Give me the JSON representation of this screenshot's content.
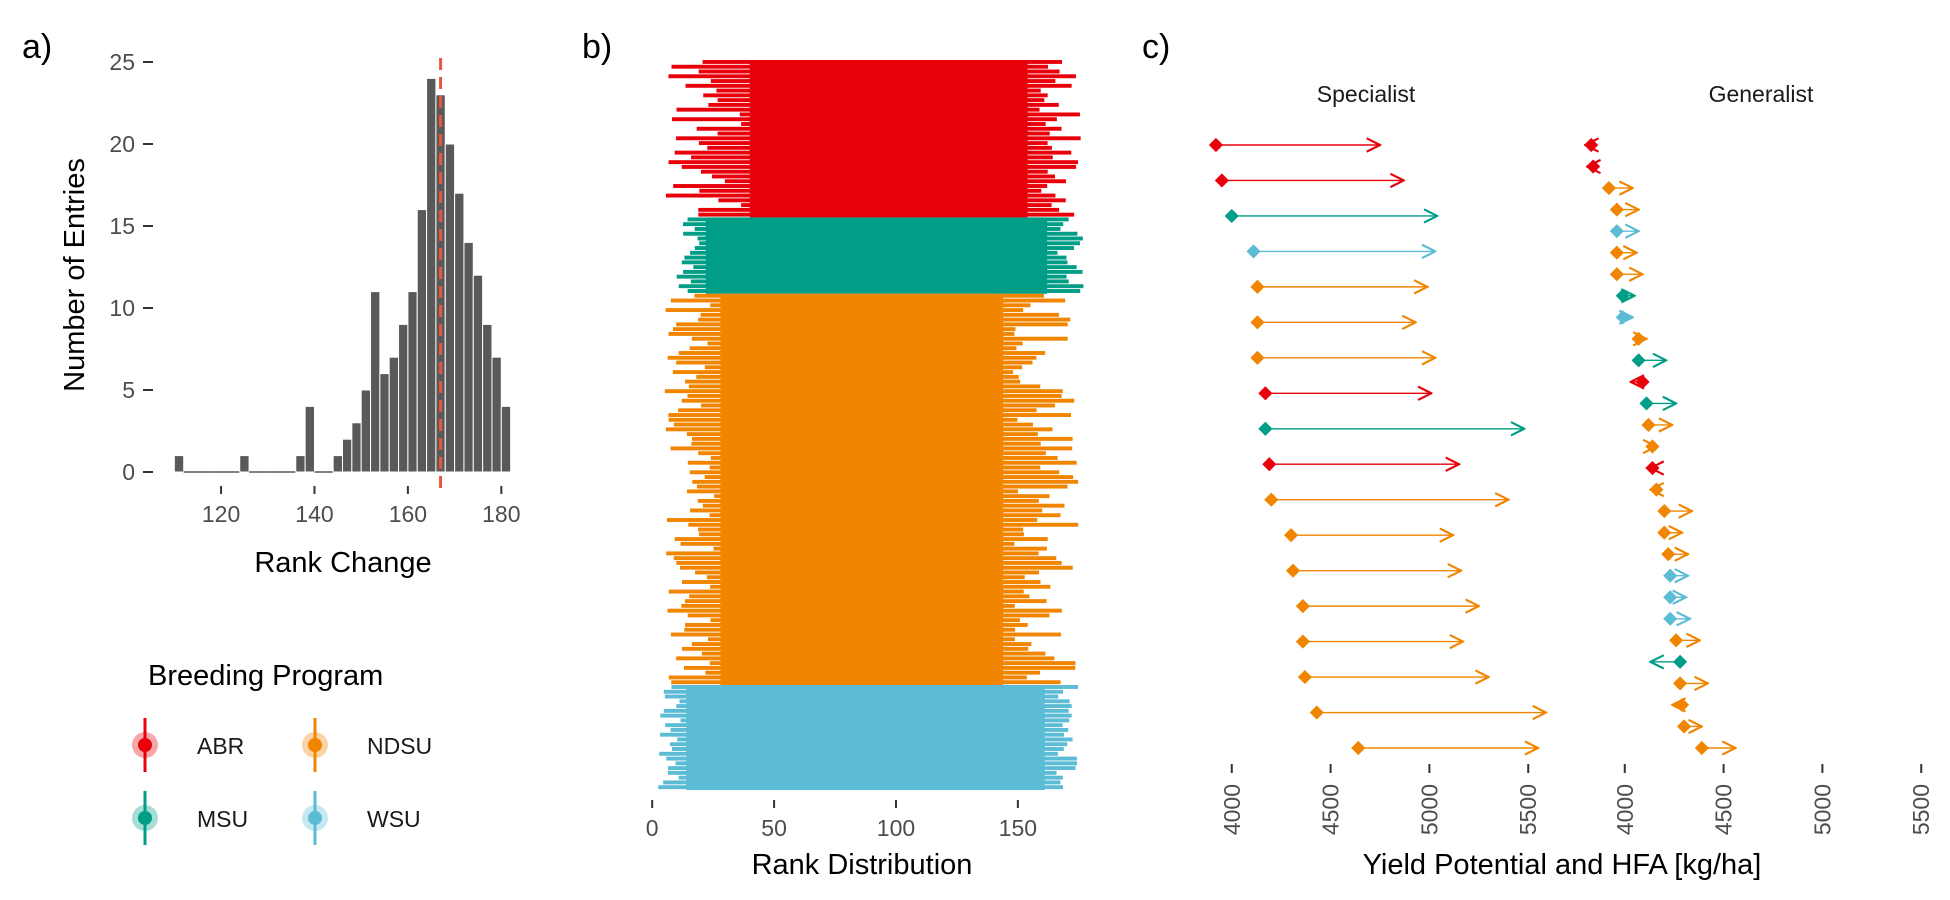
{
  "colors": {
    "ABR": "#e8000b",
    "MSU": "#009e87",
    "NDSU": "#f28500",
    "WSU": "#5cbcd6",
    "hist_bar": "#595959",
    "mean_line": "#e8563c"
  },
  "panels": {
    "a": "a)",
    "b": "b)",
    "c": "c)"
  },
  "legend": {
    "title": "Breeding Program",
    "items": [
      {
        "label": "ABR",
        "color": "#e8000b"
      },
      {
        "label": "NDSU",
        "color": "#f28500"
      },
      {
        "label": "MSU",
        "color": "#009e87"
      },
      {
        "label": "WSU",
        "color": "#5cbcd6"
      }
    ]
  },
  "chart_data": [
    {
      "type": "bar",
      "panel": "a",
      "xlabel": "Rank Change",
      "ylabel": "Number of Entries",
      "xlim": [
        108,
        184
      ],
      "ylim": [
        0,
        25
      ],
      "xticks": [
        120,
        140,
        160,
        180
      ],
      "yticks": [
        0,
        5,
        10,
        15,
        20,
        25
      ],
      "bin_width": 2,
      "bins": [
        {
          "x": 111,
          "count": 1
        },
        {
          "x": 113,
          "count": 0
        },
        {
          "x": 115,
          "count": 0
        },
        {
          "x": 117,
          "count": 0
        },
        {
          "x": 119,
          "count": 0
        },
        {
          "x": 121,
          "count": 0
        },
        {
          "x": 123,
          "count": 0
        },
        {
          "x": 125,
          "count": 1
        },
        {
          "x": 127,
          "count": 0
        },
        {
          "x": 129,
          "count": 0
        },
        {
          "x": 131,
          "count": 0
        },
        {
          "x": 133,
          "count": 0
        },
        {
          "x": 135,
          "count": 0
        },
        {
          "x": 137,
          "count": 1
        },
        {
          "x": 139,
          "count": 4
        },
        {
          "x": 141,
          "count": 0
        },
        {
          "x": 143,
          "count": 0
        },
        {
          "x": 145,
          "count": 1
        },
        {
          "x": 147,
          "count": 2
        },
        {
          "x": 149,
          "count": 3
        },
        {
          "x": 151,
          "count": 5
        },
        {
          "x": 153,
          "count": 11
        },
        {
          "x": 155,
          "count": 6
        },
        {
          "x": 157,
          "count": 7
        },
        {
          "x": 159,
          "count": 9
        },
        {
          "x": 161,
          "count": 11
        },
        {
          "x": 163,
          "count": 16
        },
        {
          "x": 165,
          "count": 24
        },
        {
          "x": 167,
          "count": 23
        },
        {
          "x": 169,
          "count": 20
        },
        {
          "x": 171,
          "count": 17
        },
        {
          "x": 173,
          "count": 14
        },
        {
          "x": 175,
          "count": 12
        },
        {
          "x": 177,
          "count": 9
        },
        {
          "x": 179,
          "count": 7
        },
        {
          "x": 181,
          "count": 4
        }
      ],
      "mean": 167
    },
    {
      "type": "bar",
      "panel": "b",
      "orientation": "horizontal",
      "xlabel": "Rank Distribution",
      "xlim": [
        -5,
        180
      ],
      "xticks": [
        0,
        50,
        100,
        150
      ],
      "groups": [
        {
          "program": "ABR",
          "entries": 33,
          "start_min": 4,
          "start_max": 38,
          "end_min": 158,
          "end_max": 176
        },
        {
          "program": "MSU",
          "entries": 16,
          "start_min": 10,
          "start_max": 20,
          "end_min": 166,
          "end_max": 177
        },
        {
          "program": "NDSU",
          "entries": 82,
          "start_min": 5,
          "start_max": 26,
          "end_min": 148,
          "end_max": 175
        },
        {
          "program": "WSU",
          "entries": 22,
          "start_min": 2,
          "start_max": 12,
          "end_min": 165,
          "end_max": 175
        }
      ]
    },
    {
      "type": "scatter",
      "panel": "c",
      "xlabel": "Yield Potential and HFA [kg/ha]",
      "xlim": [
        3900,
        5600
      ],
      "xticks": [
        4000,
        4500,
        5000,
        5500
      ],
      "facets": [
        {
          "name": "Specialist",
          "entries": [
            {
              "program": "ABR",
              "from": 3920,
              "to": 4750
            },
            {
              "program": "ABR",
              "from": 3950,
              "to": 4870
            },
            {
              "program": "MSU",
              "from": 4000,
              "to": 5040
            },
            {
              "program": "WSU",
              "from": 4110,
              "to": 5030
            },
            {
              "program": "NDSU",
              "from": 4130,
              "to": 4990
            },
            {
              "program": "NDSU",
              "from": 4130,
              "to": 4930
            },
            {
              "program": "NDSU",
              "from": 4130,
              "to": 5030
            },
            {
              "program": "ABR",
              "from": 4170,
              "to": 5010
            },
            {
              "program": "MSU",
              "from": 4170,
              "to": 5480
            },
            {
              "program": "ABR",
              "from": 4190,
              "to": 5150
            },
            {
              "program": "NDSU",
              "from": 4200,
              "to": 5400
            },
            {
              "program": "NDSU",
              "from": 4300,
              "to": 5120
            },
            {
              "program": "NDSU",
              "from": 4310,
              "to": 5160
            },
            {
              "program": "NDSU",
              "from": 4360,
              "to": 5250
            },
            {
              "program": "NDSU",
              "from": 4360,
              "to": 5170
            },
            {
              "program": "NDSU",
              "from": 4370,
              "to": 5300
            },
            {
              "program": "NDSU",
              "from": 4430,
              "to": 5590
            },
            {
              "program": "NDSU",
              "from": 4640,
              "to": 5550
            }
          ]
        },
        {
          "name": "Generalist",
          "entries": [
            {
              "program": "ABR",
              "from": 3830,
              "to": 3800
            },
            {
              "program": "ABR",
              "from": 3840,
              "to": 3810
            },
            {
              "program": "NDSU",
              "from": 3920,
              "to": 4040
            },
            {
              "program": "NDSU",
              "from": 3960,
              "to": 4070
            },
            {
              "program": "WSU",
              "from": 3960,
              "to": 4070
            },
            {
              "program": "NDSU",
              "from": 3960,
              "to": 4060
            },
            {
              "program": "NDSU",
              "from": 3960,
              "to": 4090
            },
            {
              "program": "MSU",
              "from": 3990,
              "to": 4050
            },
            {
              "program": "WSU",
              "from": 3990,
              "to": 4040
            },
            {
              "program": "NDSU",
              "from": 4070,
              "to": 4110
            },
            {
              "program": "MSU",
              "from": 4070,
              "to": 4210
            },
            {
              "program": "ABR",
              "from": 4090,
              "to": 4030
            },
            {
              "program": "MSU",
              "from": 4110,
              "to": 4260
            },
            {
              "program": "NDSU",
              "from": 4120,
              "to": 4240
            },
            {
              "program": "NDSU",
              "from": 4140,
              "to": 4160
            },
            {
              "program": "ABR",
              "from": 4140,
              "to": 4130
            },
            {
              "program": "NDSU",
              "from": 4160,
              "to": 4130
            },
            {
              "program": "NDSU",
              "from": 4200,
              "to": 4340
            },
            {
              "program": "NDSU",
              "from": 4200,
              "to": 4290
            },
            {
              "program": "NDSU",
              "from": 4220,
              "to": 4320
            },
            {
              "program": "WSU",
              "from": 4230,
              "to": 4320
            },
            {
              "program": "WSU",
              "from": 4230,
              "to": 4310
            },
            {
              "program": "WSU",
              "from": 4230,
              "to": 4330
            },
            {
              "program": "NDSU",
              "from": 4260,
              "to": 4380
            },
            {
              "program": "MSU",
              "from": 4280,
              "to": 4130
            },
            {
              "program": "NDSU",
              "from": 4280,
              "to": 4420
            },
            {
              "program": "NDSU",
              "from": 4290,
              "to": 4240
            },
            {
              "program": "NDSU",
              "from": 4300,
              "to": 4390
            },
            {
              "program": "NDSU",
              "from": 4390,
              "to": 4560
            }
          ]
        }
      ]
    }
  ]
}
